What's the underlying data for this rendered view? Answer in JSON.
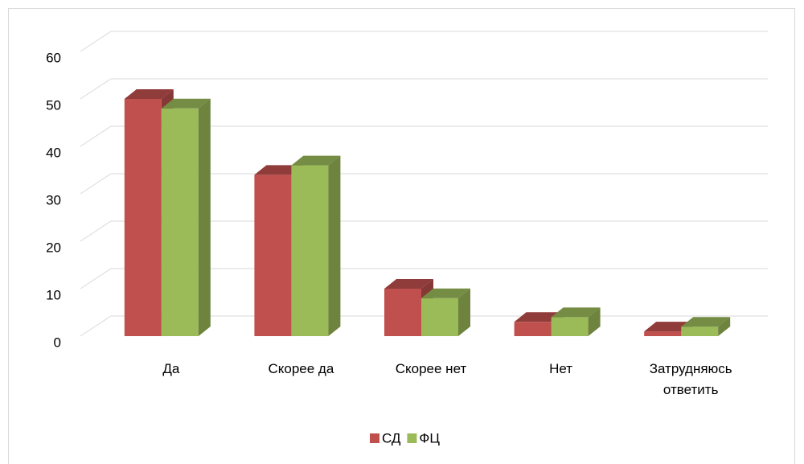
{
  "chart_data": {
    "type": "bar3d",
    "categories": [
      "Да",
      "Скорее да",
      "Скорее нет",
      "Нет",
      "Затрудняюсь ответить"
    ],
    "series": [
      {
        "name": "СД",
        "color": "#c0504d",
        "values": [
          50,
          34,
          10,
          3,
          1
        ]
      },
      {
        "name": "ФЦ",
        "color": "#9bbb59",
        "values": [
          48,
          36,
          8,
          4,
          2
        ]
      }
    ],
    "ylim": [
      0,
      60
    ],
    "yticks": [
      0,
      10,
      20,
      30,
      40,
      50,
      60
    ],
    "grid": true,
    "legend": "bottom"
  }
}
